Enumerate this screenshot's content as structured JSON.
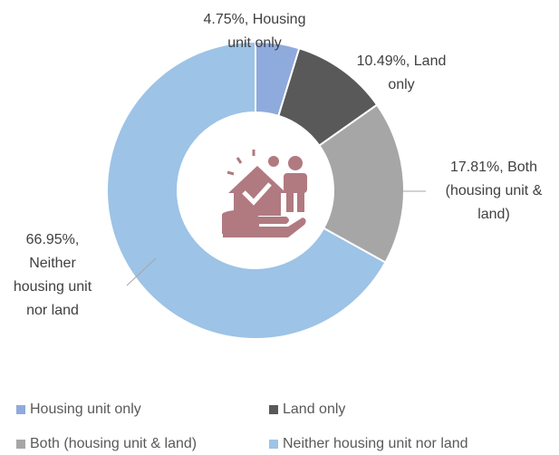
{
  "chart_data": {
    "type": "donut",
    "categories": [
      "Housing unit only",
      "Land only",
      "Both (housing unit & land)",
      "Neither housing unit nor land"
    ],
    "values": [
      4.75,
      10.49,
      17.81,
      66.95
    ],
    "value_labels": [
      "4.75%, Housing unit only",
      "10.49%, Land only",
      "17.81%, Both (housing unit & land)",
      "66.95%, Neither housing unit nor land"
    ],
    "colors": [
      "#8faadc",
      "#595959",
      "#a6a6a6",
      "#9dc3e6"
    ],
    "legend": "bottom"
  }
}
